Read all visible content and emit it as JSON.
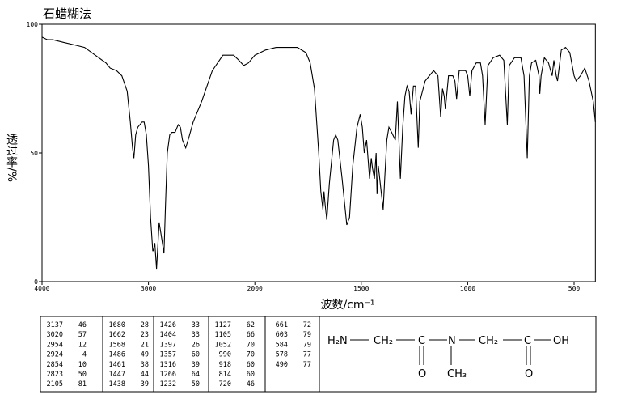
{
  "chart_data": {
    "type": "line",
    "title": "石蜡糊法",
    "xlabel": "波数/cm⁻¹",
    "ylabel": "透过率/%",
    "color": "#000000",
    "xlim": [
      4000,
      400
    ],
    "ylim": [
      0,
      100
    ],
    "xticks": [
      4000,
      3000,
      2000,
      1500,
      1000,
      500
    ],
    "yticks": [
      0,
      50,
      100
    ],
    "x": [
      4000,
      3950,
      3900,
      3800,
      3700,
      3600,
      3500,
      3400,
      3360,
      3300,
      3250,
      3200,
      3170,
      3150,
      3137,
      3120,
      3100,
      3060,
      3040,
      3020,
      3000,
      2980,
      2960,
      2954,
      2940,
      2924,
      2910,
      2900,
      2880,
      2854,
      2840,
      2823,
      2800,
      2780,
      2750,
      2720,
      2700,
      2680,
      2650,
      2620,
      2580,
      2500,
      2400,
      2300,
      2200,
      2150,
      2105,
      2060,
      2000,
      1950,
      1900,
      1850,
      1800,
      1760,
      1740,
      1720,
      1700,
      1690,
      1680,
      1675,
      1670,
      1662,
      1650,
      1630,
      1620,
      1610,
      1590,
      1568,
      1555,
      1540,
      1520,
      1505,
      1495,
      1486,
      1475,
      1461,
      1453,
      1447,
      1438,
      1430,
      1426,
      1420,
      1404,
      1397,
      1390,
      1380,
      1370,
      1357,
      1340,
      1330,
      1316,
      1305,
      1295,
      1285,
      1275,
      1266,
      1255,
      1245,
      1232,
      1225,
      1200,
      1180,
      1160,
      1140,
      1127,
      1118,
      1110,
      1105,
      1090,
      1070,
      1060,
      1052,
      1040,
      1010,
      1000,
      990,
      980,
      960,
      940,
      930,
      918,
      905,
      880,
      850,
      830,
      814,
      805,
      780,
      750,
      735,
      720,
      710,
      700,
      680,
      665,
      661,
      655,
      640,
      620,
      610,
      603,
      595,
      584,
      578,
      560,
      540,
      520,
      500,
      490,
      470,
      450,
      430,
      410,
      400
    ],
    "values": [
      95,
      94,
      94,
      93,
      92,
      91,
      88,
      85,
      83,
      82,
      80,
      74,
      62,
      52,
      48,
      57,
      60,
      62,
      62,
      57,
      45,
      25,
      12,
      12,
      15,
      5,
      15,
      23,
      18,
      11,
      30,
      50,
      57,
      58,
      58,
      61,
      60,
      55,
      52,
      56,
      62,
      70,
      82,
      88,
      88,
      86,
      84,
      85,
      88,
      90,
      91,
      91,
      91,
      89,
      85,
      75,
      50,
      35,
      28,
      35,
      30,
      24,
      38,
      55,
      57,
      55,
      40,
      22,
      25,
      45,
      60,
      65,
      60,
      50,
      55,
      40,
      48,
      44,
      40,
      50,
      34,
      45,
      33,
      28,
      40,
      55,
      60,
      58,
      55,
      70,
      40,
      60,
      72,
      76,
      74,
      65,
      76,
      76,
      52,
      70,
      78,
      80,
      82,
      80,
      64,
      75,
      72,
      67,
      80,
      80,
      78,
      71,
      82,
      82,
      80,
      72,
      82,
      85,
      85,
      80,
      61,
      84,
      87,
      88,
      86,
      61,
      84,
      87,
      87,
      80,
      48,
      80,
      85,
      86,
      80,
      73,
      80,
      87,
      85,
      82,
      80,
      86,
      80,
      78,
      90,
      91,
      89,
      80,
      78,
      80,
      83,
      78,
      70,
      62
    ]
  },
  "peak_table": {
    "columns": [
      [
        [
          3137,
          46
        ],
        [
          3020,
          57
        ],
        [
          2954,
          12
        ],
        [
          2924,
          4
        ],
        [
          2854,
          10
        ],
        [
          2823,
          50
        ],
        [
          2105,
          81
        ]
      ],
      [
        [
          1680,
          28
        ],
        [
          1662,
          23
        ],
        [
          1568,
          21
        ],
        [
          1486,
          49
        ],
        [
          1461,
          38
        ],
        [
          1447,
          44
        ],
        [
          1438,
          39
        ]
      ],
      [
        [
          1426,
          33
        ],
        [
          1404,
          33
        ],
        [
          1397,
          26
        ],
        [
          1357,
          60
        ],
        [
          1316,
          39
        ],
        [
          1266,
          64
        ],
        [
          1232,
          50
        ]
      ],
      [
        [
          1127,
          62
        ],
        [
          1105,
          66
        ],
        [
          1052,
          70
        ],
        [
          990,
          70
        ],
        [
          918,
          60
        ],
        [
          814,
          60
        ],
        [
          720,
          46
        ]
      ],
      [
        [
          661,
          72
        ],
        [
          603,
          79
        ],
        [
          584,
          79
        ],
        [
          578,
          77
        ],
        [
          490,
          77
        ]
      ]
    ]
  },
  "structure": {
    "atoms": [
      "H₂N",
      "CH₂",
      "C",
      "N",
      "CH₂",
      "C",
      "OH",
      "O",
      "CH₃",
      "O"
    ]
  }
}
